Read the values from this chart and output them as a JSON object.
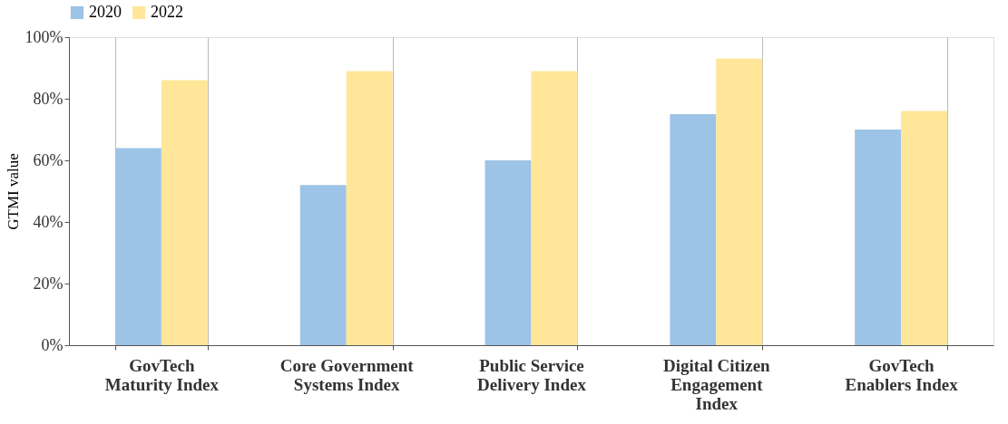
{
  "chart_data": {
    "type": "bar",
    "categories": [
      "GovTech Maturity Index",
      "Core Government Systems Index",
      "Public Service Delivery Index",
      "Digital Citizen Engagement Index",
      "GovTech Enablers Index"
    ],
    "series": [
      {
        "name": "2020",
        "color": "#9dc3e6",
        "values": [
          64,
          52,
          60,
          75,
          70
        ]
      },
      {
        "name": "2022",
        "color": "#ffe699",
        "values": [
          86,
          89,
          89,
          93,
          76
        ]
      }
    ],
    "ylabel": "GTMI value",
    "ylim": [
      0,
      100
    ],
    "yticks": [
      {
        "value": 0,
        "label": "0%"
      },
      {
        "value": 20,
        "label": "20%"
      },
      {
        "value": 40,
        "label": "40%"
      },
      {
        "value": 60,
        "label": "60%"
      },
      {
        "value": 80,
        "label": "80%"
      },
      {
        "value": 100,
        "label": "100%"
      }
    ],
    "grid": "x",
    "legend": "top"
  }
}
